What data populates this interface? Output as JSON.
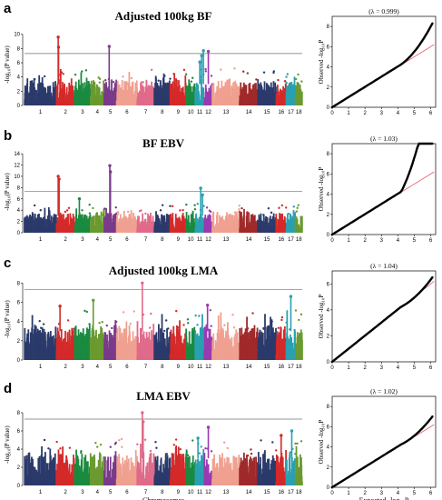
{
  "figure": {
    "panels": [
      {
        "letter": "a",
        "title": "Adjusted 100kg BF",
        "ylabel": "-log₁₀(P value)",
        "yticks": [
          0,
          2,
          4,
          6,
          8,
          10
        ],
        "ymax": 11.5,
        "threshold": 7.3,
        "xlabel": "",
        "lambda_label": "(λ = 0.999)",
        "qq_ylabel": "Observed -log₁₀P",
        "qq_xlabel": "",
        "qq_yticks": [
          0,
          2,
          4,
          6,
          8
        ],
        "qq_ymax": 9,
        "qq_end": 8.3,
        "peaks": [
          {
            "chr": 2,
            "pos": 0.1,
            "val": 9.6
          },
          {
            "chr": 2,
            "pos": 0.12,
            "val": 8.2
          },
          {
            "chr": 5,
            "pos": 0.4,
            "val": 8.3
          },
          {
            "chr": 11,
            "pos": 0.7,
            "val": 7.0
          },
          {
            "chr": 11,
            "pos": 0.9,
            "val": 7.7
          },
          {
            "chr": 12,
            "pos": 0.5,
            "val": 7.6
          },
          {
            "chr": 11,
            "pos": 0.5,
            "val": 6.1
          }
        ]
      },
      {
        "letter": "b",
        "title": "BF EBV",
        "ylabel": "-log₁₀(P value)",
        "yticks": [
          0,
          2,
          4,
          6,
          8,
          10,
          12,
          14
        ],
        "ymax": 14.5,
        "threshold": 7.3,
        "xlabel": "",
        "lambda_label": "(λ = 1.03)",
        "qq_ylabel": "Observed -log₁₀P",
        "qq_xlabel": "",
        "qq_yticks": [
          0,
          2,
          4,
          6,
          8
        ],
        "qq_ymax": 9,
        "qq_end": 15,
        "peaks": [
          {
            "chr": 2,
            "pos": 0.1,
            "val": 10.0
          },
          {
            "chr": 2,
            "pos": 0.15,
            "val": 9.5
          },
          {
            "chr": 5,
            "pos": 0.45,
            "val": 11.9
          },
          {
            "chr": 5,
            "pos": 0.5,
            "val": 10.8
          },
          {
            "chr": 11,
            "pos": 0.6,
            "val": 7.9
          },
          {
            "chr": 11,
            "pos": 0.8,
            "val": 6.7
          },
          {
            "chr": 3,
            "pos": 0.3,
            "val": 6.0
          }
        ]
      },
      {
        "letter": "c",
        "title": "Adjusted 100kg LMA",
        "ylabel": "-log₁₀(P value)",
        "yticks": [
          0,
          2,
          4,
          6,
          8
        ],
        "ymax": 8.5,
        "threshold": 7.3,
        "xlabel": "",
        "lambda_label": "(λ = 1.04)",
        "qq_ylabel": "Observed -log₁₀P",
        "qq_xlabel": "",
        "qq_yticks": [
          0,
          2,
          4,
          6
        ],
        "qq_ymax": 7,
        "qq_end": 6.5,
        "peaks": [
          {
            "chr": 7,
            "pos": 0.3,
            "val": 8.0
          },
          {
            "chr": 17,
            "pos": 0.5,
            "val": 6.6
          },
          {
            "chr": 4,
            "pos": 0.2,
            "val": 6.2
          },
          {
            "chr": 12,
            "pos": 0.4,
            "val": 5.7
          },
          {
            "chr": 2,
            "pos": 0.2,
            "val": 5.6
          }
        ]
      },
      {
        "letter": "d",
        "title": "LMA EBV",
        "ylabel": "-log₁₀(P value)",
        "yticks": [
          0,
          2,
          4,
          6,
          8
        ],
        "ymax": 9,
        "threshold": 7.3,
        "xlabel": "Chromosomes",
        "lambda_label": "(λ = 1.02)",
        "qq_ylabel": "Observed -log₁₀P",
        "qq_xlabel": "Expected -log₁₀P",
        "qq_yticks": [
          0,
          2,
          4,
          6,
          8
        ],
        "qq_ymax": 9,
        "qq_end": 7.0,
        "peaks": [
          {
            "chr": 7,
            "pos": 0.3,
            "val": 8.0
          },
          {
            "chr": 7,
            "pos": 0.35,
            "val": 7.0
          },
          {
            "chr": 12,
            "pos": 0.5,
            "val": 6.4
          },
          {
            "chr": 16,
            "pos": 0.5,
            "val": 5.5
          },
          {
            "chr": 17,
            "pos": 0.6,
            "val": 6.0
          },
          {
            "chr": 11,
            "pos": 0.3,
            "val": 5.2
          }
        ]
      }
    ],
    "chromosomes": [
      "1",
      "2",
      "3",
      "4",
      "5",
      "6",
      "7",
      "8",
      "9",
      "10",
      "11",
      "12",
      "13",
      "14",
      "15",
      "16",
      "17",
      "18"
    ],
    "chr_sizes": [
      14,
      8,
      7,
      6,
      5.5,
      9,
      7.5,
      7,
      7,
      4,
      4,
      3.5,
      12,
      8,
      8,
      4.5,
      4,
      3
    ],
    "chr_colors": [
      "#2b3a6b",
      "#d42a2a",
      "#1a8a40",
      "#6a9a30",
      "#7a3a8a",
      "#f0a090",
      "#e06a8a",
      "#2b3a6b",
      "#d42a2a",
      "#1a8a40",
      "#2aa0b0",
      "#9a3ab0",
      "#f0a090",
      "#a02a2a",
      "#2b3a6b",
      "#d42a2a",
      "#2aa0b0",
      "#6a9a30"
    ],
    "qq_xticks": [
      0,
      1,
      2,
      3,
      4,
      5,
      6
    ],
    "line_color": "#e06070",
    "threshold_color": "#707070"
  }
}
